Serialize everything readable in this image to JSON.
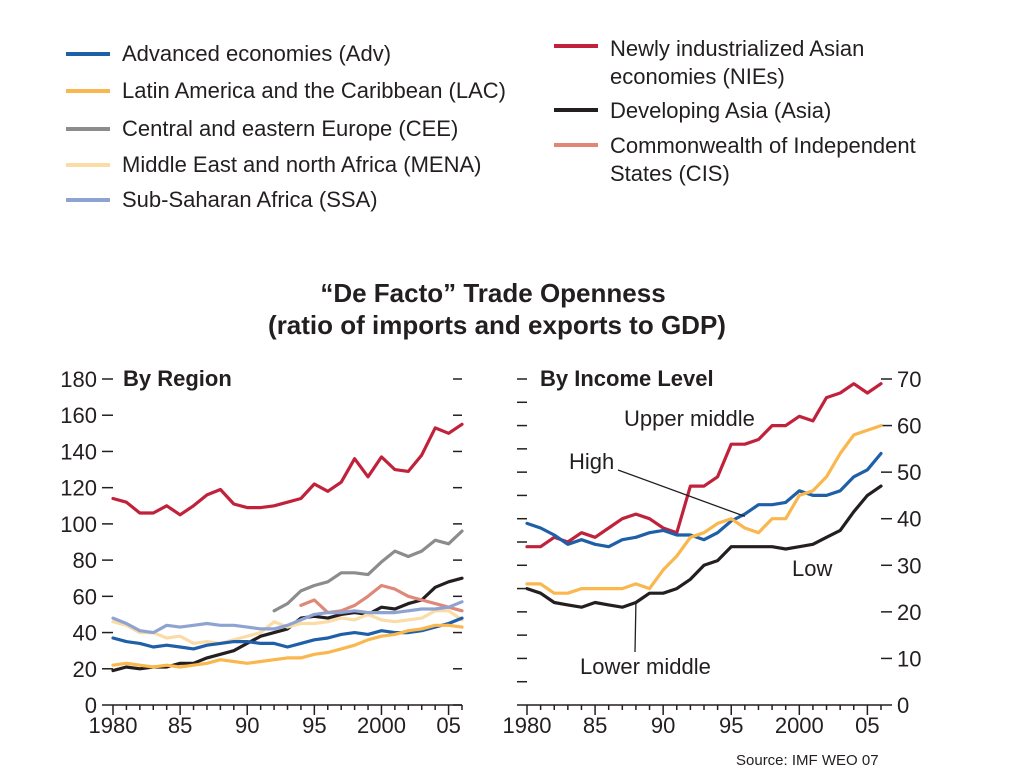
{
  "legend": {
    "left": [
      {
        "key": "adv",
        "label": "Advanced economies (Adv)"
      },
      {
        "key": "lac",
        "label": "Latin America and the Caribbean (LAC)"
      },
      {
        "key": "cee",
        "label": "Central and eastern Europe (CEE)"
      },
      {
        "key": "mena",
        "label": "Middle East and north Africa (MENA)"
      },
      {
        "key": "ssa",
        "label": "Sub-Saharan Africa (SSA)"
      }
    ],
    "right": [
      {
        "key": "nies",
        "lines": [
          "Newly industrialized Asian",
          "economies (NIEs)"
        ]
      },
      {
        "key": "asia",
        "lines": [
          "Developing Asia (Asia)"
        ]
      },
      {
        "key": "cis",
        "lines": [
          "Commonwealth of Independent",
          "States (CIS)"
        ]
      }
    ]
  },
  "title": {
    "line1": "“De Facto” Trade Openness",
    "line2": "(ratio of imports and exports to GDP)"
  },
  "source": "Source: IMF WEO 07",
  "colors": {
    "adv": "#1f5fa8",
    "lac": "#f9b74e",
    "cee": "#8c8c8c",
    "mena": "#fbdba6",
    "ssa": "#8fa3d3",
    "nies": "#c0223b",
    "asia": "#231f20",
    "cis": "#e08878",
    "high": "#1f5fa8",
    "upper": "#c0223b",
    "lowermid": "#f9b74e",
    "low": "#231f20"
  },
  "chart_data": [
    {
      "type": "line",
      "title": "By Region",
      "xlabel": "",
      "ylabel": "",
      "xlim": [
        1980,
        2006
      ],
      "ylim": [
        0,
        180
      ],
      "x_ticks": [
        1980,
        1985,
        1990,
        1995,
        2000,
        2005
      ],
      "x_tick_labels": [
        "1980",
        "85",
        "90",
        "95",
        "2000",
        "05"
      ],
      "y_ticks": [
        0,
        20,
        40,
        60,
        80,
        100,
        120,
        140,
        160,
        180
      ],
      "y_tick_labels": [
        "0",
        "20",
        "40",
        "60",
        "80",
        "100",
        "120",
        "140",
        "160",
        "180"
      ],
      "grid": false,
      "series": [
        {
          "key": "nies",
          "name": "Newly industrialized Asian economies (NIEs)",
          "x": [
            1980,
            1981,
            1982,
            1983,
            1984,
            1985,
            1986,
            1987,
            1988,
            1989,
            1990,
            1991,
            1992,
            1993,
            1994,
            1995,
            1996,
            1997,
            1998,
            1999,
            2000,
            2001,
            2002,
            2003,
            2004,
            2005,
            2006
          ],
          "y": [
            114,
            112,
            106,
            106,
            110,
            105,
            110,
            116,
            119,
            111,
            109,
            109,
            110,
            112,
            114,
            122,
            118,
            123,
            136,
            126,
            137,
            130,
            129,
            138,
            153,
            150,
            155
          ]
        },
        {
          "key": "cee",
          "name": "Central and eastern Europe (CEE)",
          "x": [
            1992,
            1993,
            1994,
            1995,
            1996,
            1997,
            1998,
            1999,
            2000,
            2001,
            2002,
            2003,
            2004,
            2005,
            2006
          ],
          "y": [
            52,
            56,
            63,
            66,
            68,
            73,
            73,
            72,
            79,
            85,
            82,
            85,
            91,
            89,
            96
          ]
        },
        {
          "key": "asia",
          "name": "Developing Asia (Asia)",
          "x": [
            1980,
            1981,
            1982,
            1983,
            1984,
            1985,
            1986,
            1987,
            1988,
            1989,
            1990,
            1991,
            1992,
            1993,
            1994,
            1995,
            1996,
            1997,
            1998,
            1999,
            2000,
            2001,
            2002,
            2003,
            2004,
            2005,
            2006
          ],
          "y": [
            19,
            21,
            20,
            21,
            21,
            23,
            23,
            26,
            28,
            30,
            34,
            38,
            40,
            42,
            48,
            49,
            48,
            50,
            51,
            50,
            54,
            53,
            56,
            58,
            65,
            68,
            70
          ]
        },
        {
          "key": "cis",
          "name": "Commonwealth of Independent States (CIS)",
          "x": [
            1994,
            1995,
            1996,
            1997,
            1998,
            1999,
            2000,
            2001,
            2002,
            2003,
            2004,
            2005,
            2006
          ],
          "y": [
            55,
            58,
            51,
            52,
            55,
            60,
            66,
            64,
            60,
            58,
            56,
            54,
            52
          ]
        },
        {
          "key": "mena",
          "name": "Middle East and north Africa (MENA)",
          "x": [
            1980,
            1981,
            1982,
            1983,
            1984,
            1985,
            1986,
            1987,
            1988,
            1989,
            1990,
            1991,
            1992,
            1993,
            1994,
            1995,
            1996,
            1997,
            1998,
            1999,
            2000,
            2001,
            2002,
            2003,
            2004,
            2005,
            2006
          ],
          "y": [
            46,
            44,
            40,
            40,
            37,
            38,
            34,
            35,
            34,
            36,
            38,
            40,
            46,
            43,
            45,
            45,
            46,
            48,
            47,
            50,
            47,
            46,
            47,
            48,
            52,
            52,
            47
          ]
        },
        {
          "key": "ssa",
          "name": "Sub-Saharan Africa (SSA)",
          "x": [
            1980,
            1981,
            1982,
            1983,
            1984,
            1985,
            1986,
            1987,
            1988,
            1989,
            1990,
            1991,
            1992,
            1993,
            1994,
            1995,
            1996,
            1997,
            1998,
            1999,
            2000,
            2001,
            2002,
            2003,
            2004,
            2005,
            2006
          ],
          "y": [
            48,
            45,
            41,
            40,
            44,
            43,
            44,
            45,
            44,
            44,
            43,
            42,
            42,
            44,
            47,
            50,
            51,
            51,
            52,
            51,
            51,
            51,
            52,
            53,
            53,
            54,
            57
          ]
        },
        {
          "key": "adv",
          "name": "Advanced economies (Adv)",
          "x": [
            1980,
            1981,
            1982,
            1983,
            1984,
            1985,
            1986,
            1987,
            1988,
            1989,
            1990,
            1991,
            1992,
            1993,
            1994,
            1995,
            1996,
            1997,
            1998,
            1999,
            2000,
            2001,
            2002,
            2003,
            2004,
            2005,
            2006
          ],
          "y": [
            37,
            35,
            34,
            32,
            33,
            32,
            31,
            33,
            34,
            35,
            35,
            34,
            34,
            32,
            34,
            36,
            37,
            39,
            40,
            39,
            41,
            40,
            40,
            41,
            43,
            45,
            48
          ]
        },
        {
          "key": "lac",
          "name": "Latin America and the Caribbean (LAC)",
          "x": [
            1980,
            1981,
            1982,
            1983,
            1984,
            1985,
            1986,
            1987,
            1988,
            1989,
            1990,
            1991,
            1992,
            1993,
            1994,
            1995,
            1996,
            1997,
            1998,
            1999,
            2000,
            2001,
            2002,
            2003,
            2004,
            2005,
            2006
          ],
          "y": [
            22,
            23,
            22,
            21,
            22,
            21,
            22,
            23,
            25,
            24,
            23,
            24,
            25,
            26,
            26,
            28,
            29,
            31,
            33,
            36,
            38,
            39,
            41,
            42,
            44,
            44,
            43
          ]
        }
      ]
    },
    {
      "type": "line",
      "title": "By Income Level",
      "xlabel": "",
      "ylabel": "",
      "xlim": [
        1980,
        2006
      ],
      "ylim": [
        0,
        70
      ],
      "x_ticks": [
        1980,
        1985,
        1990,
        1995,
        2000,
        2005
      ],
      "x_tick_labels": [
        "1980",
        "85",
        "90",
        "95",
        "2000",
        "05"
      ],
      "y_ticks": [
        0,
        10,
        20,
        30,
        40,
        50,
        60,
        70
      ],
      "y_tick_labels": [
        "0",
        "10",
        "20",
        "30",
        "40",
        "50",
        "60",
        "70"
      ],
      "grid": false,
      "annotations": [
        {
          "text": "Upper middle",
          "series": "upper"
        },
        {
          "text": "High",
          "series": "high",
          "pointer_to": [
            1996,
            40.5
          ]
        },
        {
          "text": "Low",
          "series": "low"
        },
        {
          "text": "Lower middle",
          "series": "lowermid",
          "pointer_to": [
            1988,
            22
          ]
        }
      ],
      "series": [
        {
          "key": "upper",
          "name": "Upper middle",
          "x": [
            1980,
            1981,
            1982,
            1983,
            1984,
            1985,
            1986,
            1987,
            1988,
            1989,
            1990,
            1991,
            1992,
            1993,
            1994,
            1995,
            1996,
            1997,
            1998,
            1999,
            2000,
            2001,
            2002,
            2003,
            2004,
            2005,
            2006
          ],
          "y": [
            34,
            34,
            36,
            35,
            37,
            36,
            38,
            40,
            41,
            40,
            38,
            37,
            47,
            47,
            49,
            56,
            56,
            57,
            60,
            60,
            62,
            61,
            66,
            67,
            69,
            67,
            69
          ]
        },
        {
          "key": "high",
          "name": "High",
          "x": [
            1980,
            1981,
            1982,
            1983,
            1984,
            1985,
            1986,
            1987,
            1988,
            1989,
            1990,
            1991,
            1992,
            1993,
            1994,
            1995,
            1996,
            1997,
            1998,
            1999,
            2000,
            2001,
            2002,
            2003,
            2004,
            2005,
            2006
          ],
          "y": [
            39,
            38,
            36.5,
            34.5,
            35.5,
            34.5,
            34,
            35.5,
            36,
            37,
            37.5,
            36.5,
            36.5,
            35.5,
            37,
            39.5,
            41,
            43,
            43,
            43.5,
            46,
            45,
            45,
            46,
            49,
            50.5,
            54
          ]
        },
        {
          "key": "lowermid",
          "name": "Lower middle",
          "x": [
            1980,
            1981,
            1982,
            1983,
            1984,
            1985,
            1986,
            1987,
            1988,
            1989,
            1990,
            1991,
            1992,
            1993,
            1994,
            1995,
            1996,
            1997,
            1998,
            1999,
            2000,
            2001,
            2002,
            2003,
            2004,
            2005,
            2006
          ],
          "y": [
            26,
            26,
            24,
            24,
            25,
            25,
            25,
            25,
            26,
            25,
            29,
            32,
            36,
            37,
            39,
            40,
            38,
            37,
            40,
            40,
            45,
            46,
            49,
            54,
            58,
            59,
            60
          ]
        },
        {
          "key": "low",
          "name": "Low",
          "x": [
            1980,
            1981,
            1982,
            1983,
            1984,
            1985,
            1986,
            1987,
            1988,
            1989,
            1990,
            1991,
            1992,
            1993,
            1994,
            1995,
            1996,
            1997,
            1998,
            1999,
            2000,
            2001,
            2002,
            2003,
            2004,
            2005,
            2006
          ],
          "y": [
            25,
            24,
            22,
            21.5,
            21,
            22,
            21.5,
            21,
            22,
            24,
            24,
            25,
            27,
            30,
            31,
            34,
            34,
            34,
            34,
            33.5,
            34,
            34.5,
            36,
            37.5,
            41.5,
            45,
            47
          ]
        }
      ]
    }
  ]
}
